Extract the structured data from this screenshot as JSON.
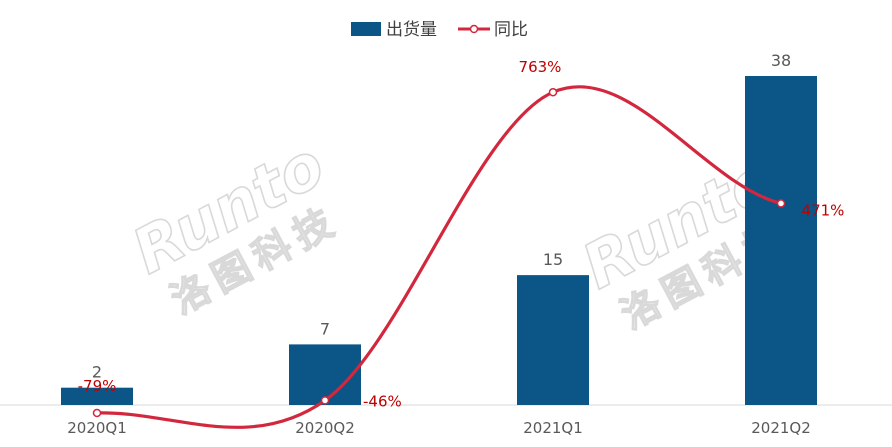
{
  "legend": {
    "bar_label": "出货量",
    "line_label": "同比"
  },
  "watermark": {
    "latin": "Runto",
    "chinese": "洛图科技"
  },
  "colors": {
    "bar": "#0b5587",
    "line": "#d2273c",
    "pct_text": "#c00000",
    "value_text": "#595959"
  },
  "chart_data": {
    "type": "bar",
    "categories": [
      "2020Q1",
      "2020Q2",
      "2021Q1",
      "2021Q2"
    ],
    "series": [
      {
        "name": "出货量",
        "type": "bar",
        "values": [
          2,
          7,
          15,
          38
        ],
        "labels": [
          "2",
          "7",
          "15",
          "38"
        ]
      },
      {
        "name": "同比",
        "type": "line",
        "smooth": true,
        "values": [
          -79,
          -46,
          763,
          471
        ],
        "labels": [
          "-79%",
          "-46%",
          "763%",
          "471%"
        ]
      }
    ],
    "ylim": [
      0,
      40
    ],
    "y2lim": [
      -150,
      900
    ],
    "grid": false,
    "legend_position": "top-center"
  }
}
